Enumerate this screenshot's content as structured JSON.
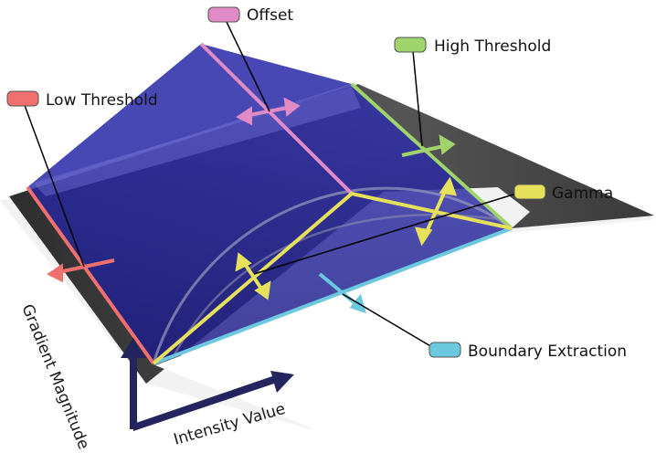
{
  "colors": {
    "offset": "#e08ac6",
    "high_threshold": "#9fd36b",
    "low_threshold": "#f07070",
    "gamma": "#e6e05a",
    "boundary_extraction": "#6cc8de",
    "volume": "#2a2aa0",
    "plane_dark": "#3c3c3c",
    "axis_arrow": "#24245e"
  },
  "labels": {
    "offset": "Offset",
    "high_threshold": "High Threshold",
    "low_threshold": "Low Threshold",
    "gamma": "Gamma",
    "boundary_extraction": "Boundary Extraction"
  },
  "axes": {
    "y_label": "Gradient Magnitude",
    "x_label": "Intensity Value"
  }
}
